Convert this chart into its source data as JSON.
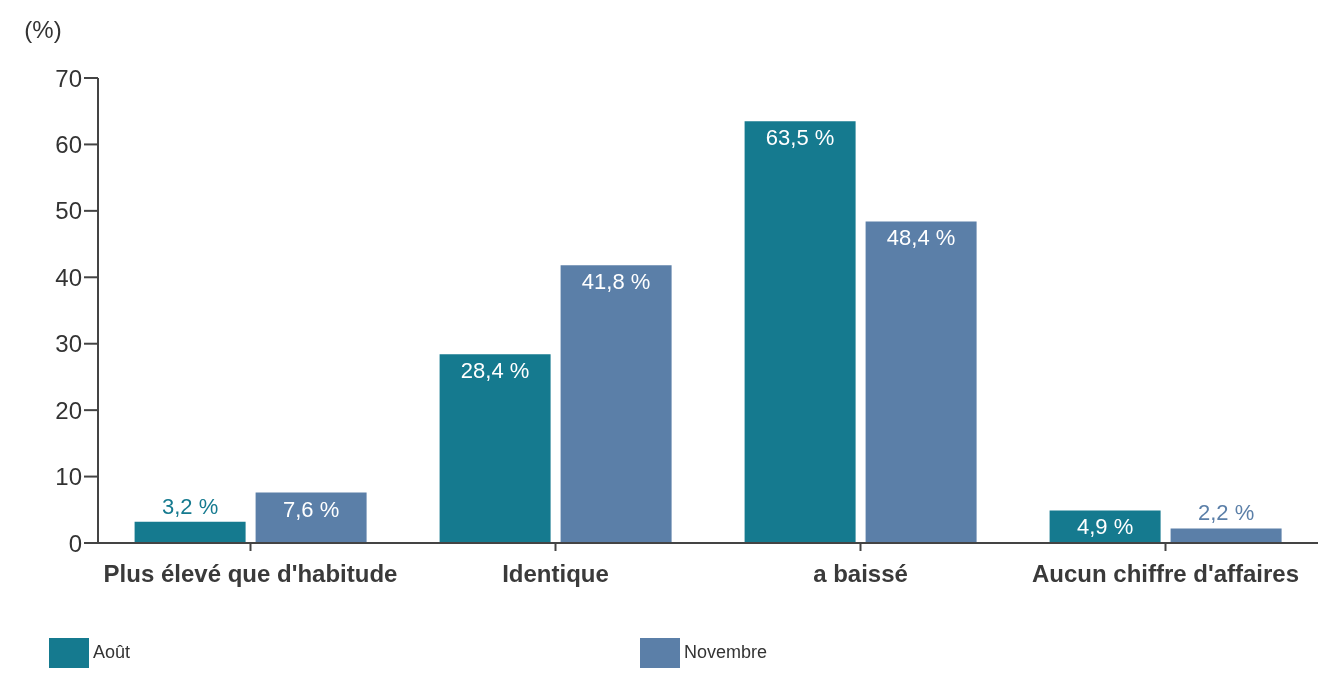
{
  "chart_data": {
    "type": "bar",
    "ylabel": "(%)",
    "categories": [
      "Plus élevé que d'habitude",
      "Identique",
      "a baissé",
      "Aucun chiffre d'affaires"
    ],
    "series": [
      {
        "name": "Août",
        "color": "#157a8f",
        "values": [
          3.2,
          28.4,
          63.5,
          4.9
        ],
        "value_labels": [
          "3,2 %",
          "28,4 %",
          "63,5 %",
          "4,9 %"
        ]
      },
      {
        "name": "Novembre",
        "color": "#5b7fa8",
        "values": [
          7.6,
          41.8,
          48.4,
          2.2
        ],
        "value_labels": [
          "7,6 %",
          "41,8 %",
          "48,4 %",
          "2,2 %"
        ]
      }
    ],
    "ylim": [
      0,
      70
    ],
    "yticks": [
      0,
      10,
      20,
      30,
      40,
      50,
      60,
      70
    ],
    "grid": false,
    "legend": "bottom"
  }
}
